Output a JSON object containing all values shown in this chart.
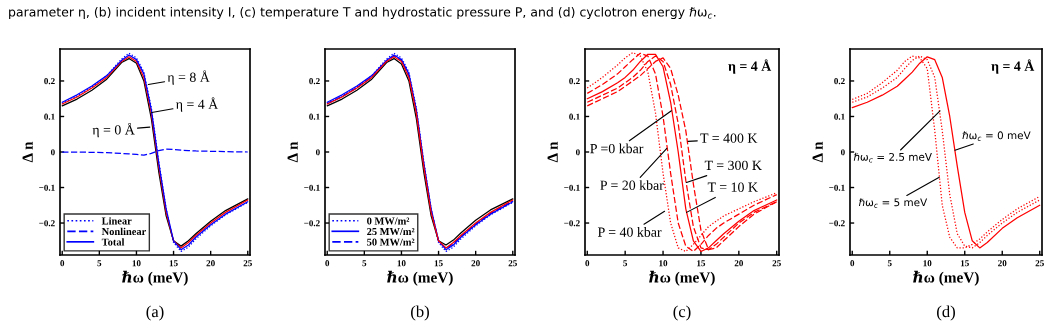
{
  "chart_data": [
    {
      "type": "line",
      "x": [
        0,
        2,
        4,
        6,
        8,
        9,
        10,
        11,
        12,
        13,
        14,
        15,
        16,
        17,
        18,
        20,
        22,
        25
      ],
      "series": [
        {
          "name": "Linear",
          "color": "#0000ff",
          "line_style": "dotted",
          "values": [
            0.137,
            0.157,
            0.183,
            0.215,
            0.262,
            0.278,
            0.265,
            0.225,
            0.125,
            -0.025,
            -0.16,
            -0.255,
            -0.28,
            -0.268,
            -0.245,
            -0.208,
            -0.177,
            -0.142
          ]
        },
        {
          "color": "#000000",
          "line_style": "solid",
          "values": [
            0.13,
            0.149,
            0.174,
            0.205,
            0.252,
            0.263,
            0.25,
            0.2,
            0.095,
            -0.055,
            -0.18,
            -0.25,
            -0.265,
            -0.25,
            -0.23,
            -0.195,
            -0.165,
            -0.132
          ]
        },
        {
          "color": "#ff0000",
          "line_style": "solid",
          "values": [
            0.135,
            0.155,
            0.18,
            0.21,
            0.255,
            0.268,
            0.255,
            0.21,
            0.11,
            -0.04,
            -0.17,
            -0.25,
            -0.27,
            -0.255,
            -0.235,
            -0.2,
            -0.17,
            -0.135
          ]
        },
        {
          "name": "Nonlinear",
          "color": "#0000ff",
          "line_style": "dashed",
          "values": [
            0,
            0,
            -0.001,
            -0.002,
            -0.004,
            -0.005,
            -0.007,
            -0.009,
            -0.004,
            0.004,
            0.008,
            0.007,
            0.005,
            0.004,
            0.003,
            0.002,
            0.001,
            0
          ]
        },
        {
          "name": "Total",
          "color": "#0000ff",
          "line_style": "solid",
          "values": [
            0.14,
            0.161,
            0.186,
            0.215,
            0.258,
            0.273,
            0.26,
            0.22,
            0.12,
            -0.03,
            -0.16,
            -0.25,
            -0.275,
            -0.262,
            -0.24,
            -0.205,
            -0.175,
            -0.14
          ]
        }
      ],
      "xlim": [
        -0.3,
        25.3
      ],
      "xticks": [
        0,
        5,
        10,
        15,
        20,
        25
      ],
      "ylim": [
        -0.29,
        0.29
      ],
      "yticks": [
        -0.2,
        -0.1,
        0,
        0.1,
        0.2
      ],
      "xlabel": "ℏω (meV)",
      "ylabel": "Δ n",
      "legend": "bottom left",
      "annotations": [
        "parameter η, (b) incident intensity I, (c) temperature T and hydrostatic pressure P, and (d) cyclotron energy ℏω$_{c}$.",
        "(a)",
        {
          "text": "η = 8 Å",
          "x": 11.6,
          "y": 0.19
        },
        {
          "text": "η = 4 Å",
          "x": 12.06,
          "y": 0.111
        },
        {
          "text": "η = 0 Å",
          "x": 11.8,
          "y": 0.07
        }
      ]
    },
    {
      "type": "line",
      "x": [
        0,
        2,
        4,
        6,
        8,
        9,
        10,
        11,
        12,
        13,
        14,
        15,
        16,
        17,
        18,
        20,
        22,
        25
      ],
      "series": [
        {
          "name": "0 MW/m²",
          "color": "#0000ff",
          "line_style": "dotted",
          "values": [
            0.137,
            0.157,
            0.183,
            0.215,
            0.262,
            0.278,
            0.265,
            0.225,
            0.125,
            -0.025,
            -0.16,
            -0.255,
            -0.28,
            -0.268,
            -0.245,
            -0.208,
            -0.177,
            -0.142
          ]
        },
        {
          "color": "#000000",
          "line_style": "solid",
          "values": [
            0.13,
            0.149,
            0.174,
            0.205,
            0.252,
            0.263,
            0.248,
            0.2,
            0.095,
            -0.055,
            -0.18,
            -0.25,
            -0.262,
            -0.248,
            -0.228,
            -0.192,
            -0.163,
            -0.132
          ]
        },
        {
          "name": "25 MW/m²",
          "color": "#0000ff",
          "line_style": "solid",
          "values": [
            0.14,
            0.161,
            0.186,
            0.215,
            0.258,
            0.273,
            0.26,
            0.22,
            0.12,
            -0.03,
            -0.16,
            -0.25,
            -0.275,
            -0.262,
            -0.24,
            -0.205,
            -0.175,
            -0.14
          ]
        },
        {
          "name": "50 MW/m²",
          "color": "#0000ff",
          "line_style": "dashed",
          "values": [
            0.136,
            0.156,
            0.181,
            0.211,
            0.256,
            0.27,
            0.258,
            0.215,
            0.115,
            -0.035,
            -0.165,
            -0.25,
            -0.272,
            -0.258,
            -0.238,
            -0.203,
            -0.173,
            -0.138
          ]
        },
        {
          "color": "#ff0000",
          "line_style": "solid",
          "values": [
            0.135,
            0.155,
            0.18,
            0.21,
            0.255,
            0.268,
            0.255,
            0.21,
            0.11,
            -0.04,
            -0.17,
            -0.25,
            -0.27,
            -0.255,
            -0.235,
            -0.2,
            -0.17,
            -0.135
          ]
        }
      ],
      "xlim": [
        -0.3,
        25.3
      ],
      "xticks": [
        0,
        5,
        10,
        15,
        20,
        25
      ],
      "ylim": [
        -0.29,
        0.29
      ],
      "yticks": [
        -0.2,
        -0.1,
        0,
        0.1,
        0.2
      ],
      "xlabel": "ℏω (meV)",
      "ylabel": "Δ n",
      "legend": "bottom left",
      "annotations": [
        "(b)"
      ]
    },
    {
      "type": "line",
      "x": [
        0,
        2,
        4,
        5,
        6,
        7,
        8,
        9,
        10,
        11,
        12,
        13,
        14,
        15,
        16,
        17,
        18,
        20,
        22,
        25
      ],
      "series": [
        {
          "color": "#ff0000",
          "line_style": "solid",
          "values": [
            0.15,
            0.17,
            0.195,
            0.21,
            0.23,
            0.255,
            0.275,
            0.275,
            0.24,
            0.14,
            0.0,
            -0.16,
            -0.25,
            -0.28,
            -0.27,
            -0.25,
            -0.23,
            -0.195,
            -0.165,
            -0.135
          ]
        },
        {
          "color": "#ff0000",
          "line_style": "dashed",
          "values": [
            0.14,
            0.16,
            0.18,
            0.195,
            0.21,
            0.23,
            0.255,
            0.27,
            0.255,
            0.19,
            0.08,
            -0.08,
            -0.21,
            -0.27,
            -0.275,
            -0.26,
            -0.24,
            -0.2,
            -0.17,
            -0.14
          ]
        },
        {
          "color": "#ff0000",
          "line_style": "dashed",
          "values": [
            0.13,
            0.15,
            0.17,
            0.185,
            0.2,
            0.215,
            0.235,
            0.255,
            0.265,
            0.235,
            0.16,
            0.06,
            -0.09,
            -0.22,
            -0.275,
            -0.27,
            -0.25,
            -0.21,
            -0.175,
            -0.14
          ]
        },
        {
          "color": "#ff0000",
          "line_style": "dashed",
          "values": [
            0.165,
            0.19,
            0.22,
            0.24,
            0.26,
            0.278,
            0.27,
            0.22,
            0.1,
            -0.06,
            -0.2,
            -0.265,
            -0.28,
            -0.26,
            -0.235,
            -0.215,
            -0.2,
            -0.175,
            -0.15,
            -0.12
          ]
        },
        {
          "color": "#ff0000",
          "line_style": "dotted",
          "values": [
            0.18,
            0.21,
            0.245,
            0.265,
            0.28,
            0.27,
            0.225,
            0.11,
            -0.06,
            -0.2,
            -0.27,
            -0.28,
            -0.26,
            -0.235,
            -0.21,
            -0.195,
            -0.18,
            -0.16,
            -0.14,
            -0.115
          ]
        }
      ],
      "xlim": [
        -0.3,
        25.3
      ],
      "xticks": [
        0,
        5,
        10,
        15,
        20,
        25
      ],
      "ylim": [
        -0.29,
        0.29
      ],
      "yticks": [
        -0.2,
        -0.1,
        0,
        0.1,
        0.2
      ],
      "xlabel": "ℏω (meV)",
      "ylabel": "Δ n",
      "annotations": [
        "η = 4 Å",
        "(c)",
        {
          "text": "P =0 kbar",
          "x": 11.1,
          "y": 0.116
        },
        {
          "text": "P = 20 kbar",
          "x": 10.5,
          "y": 0.01
        },
        {
          "text": "P = 40 kbar",
          "x": 10.2,
          "y": -0.167
        },
        {
          "text": "T = 400 K",
          "x": 13.3,
          "y": 0.03
        },
        {
          "text": "T = 300 K",
          "x": 13.1,
          "y": -0.086
        },
        {
          "text": "T = 10 K",
          "x": 13.1,
          "y": -0.17
        }
      ]
    },
    {
      "type": "line",
      "x": [
        0,
        2,
        4,
        6,
        7,
        8,
        9,
        10,
        11,
        12,
        13,
        14,
        15,
        16,
        17,
        18,
        20,
        22,
        25
      ],
      "series": [
        {
          "color": "#ff0000",
          "line_style": "solid",
          "values": [
            0.125,
            0.14,
            0.16,
            0.185,
            0.205,
            0.225,
            0.25,
            0.268,
            0.26,
            0.21,
            0.1,
            -0.04,
            -0.17,
            -0.25,
            -0.27,
            -0.255,
            -0.215,
            -0.185,
            -0.15
          ]
        },
        {
          "color": "#ff0000",
          "line_style": "dotted",
          "values": [
            0.14,
            0.155,
            0.18,
            0.21,
            0.235,
            0.258,
            0.27,
            0.26,
            0.21,
            0.06,
            -0.12,
            -0.23,
            -0.265,
            -0.27,
            -0.255,
            -0.235,
            -0.2,
            -0.17,
            -0.135
          ]
        },
        {
          "color": "#ff0000",
          "line_style": "dotted",
          "values": [
            0.148,
            0.165,
            0.195,
            0.23,
            0.255,
            0.27,
            0.265,
            0.235,
            0.06,
            -0.15,
            -0.24,
            -0.27,
            -0.27,
            -0.26,
            -0.245,
            -0.225,
            -0.19,
            -0.16,
            -0.125
          ]
        }
      ],
      "xlim": [
        -0.3,
        25.3
      ],
      "xticks": [
        0,
        5,
        10,
        15,
        20,
        25
      ],
      "ylim": [
        -0.29,
        0.29
      ],
      "yticks": [
        -0.2,
        -0.1,
        0,
        0.1,
        0.2
      ],
      "xlabel": "ℏω (meV)",
      "ylabel": "Δ n",
      "annotations": [
        "η = 4 Å",
        "(d)",
        {
          "text": "ℏω$_{c}$ = 0 meV",
          "x": 13.7,
          "y": 0.005
        },
        {
          "text": "ℏω$_{c}$ = 2.5 meV",
          "x": 11.7,
          "y": 0.116
        },
        {
          "text": "ℏω$_{c}$ = 5 meV",
          "x": 11.6,
          "y": -0.071
        }
      ]
    }
  ]
}
